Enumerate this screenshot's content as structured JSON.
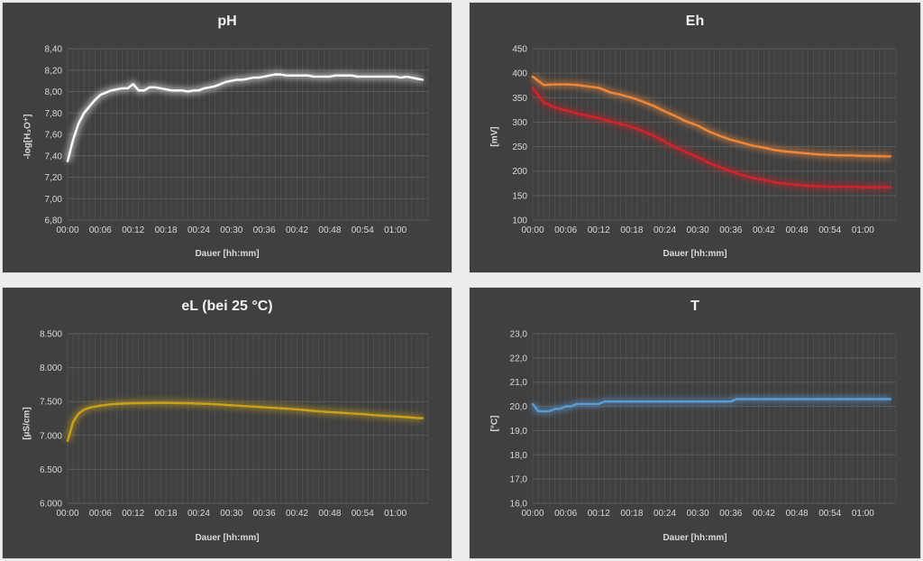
{
  "chart_data": [
    {
      "type": "line",
      "title": "pH",
      "xlabel": "Dauer [hh:mm]",
      "ylabel": "-log[H₃O⁺]",
      "ylim": [
        6.8,
        8.4
      ],
      "ystep": 0.2,
      "ydecimals": 2,
      "xlim": [
        0,
        66
      ],
      "xticks": [
        "00:00",
        "00:06",
        "00:12",
        "00:18",
        "00:24",
        "00:30",
        "00:36",
        "00:42",
        "00:48",
        "00:54",
        "01:00"
      ],
      "grid": true,
      "series": [
        {
          "color": "#ffffff",
          "x": [
            0,
            1,
            2,
            3,
            4,
            5,
            6,
            7,
            8,
            9,
            10,
            11,
            12,
            13,
            14,
            15,
            16,
            17,
            18,
            19,
            20,
            21,
            22,
            23,
            24,
            25,
            26,
            27,
            28,
            29,
            30,
            31,
            32,
            33,
            34,
            35,
            36,
            37,
            38,
            39,
            40,
            41,
            42,
            43,
            44,
            45,
            46,
            47,
            48,
            49,
            50,
            51,
            52,
            53,
            54,
            55,
            56,
            57,
            58,
            59,
            60,
            61,
            62,
            63,
            64,
            65
          ],
          "values": [
            7.35,
            7.55,
            7.7,
            7.8,
            7.86,
            7.92,
            7.97,
            7.99,
            8.01,
            8.02,
            8.03,
            8.03,
            8.07,
            8.01,
            8.01,
            8.04,
            8.04,
            8.03,
            8.02,
            8.01,
            8.01,
            8.01,
            8.0,
            8.01,
            8.01,
            8.03,
            8.04,
            8.05,
            8.07,
            8.09,
            8.1,
            8.11,
            8.11,
            8.12,
            8.13,
            8.13,
            8.14,
            8.15,
            8.16,
            8.16,
            8.15,
            8.15,
            8.15,
            8.15,
            8.15,
            8.14,
            8.14,
            8.14,
            8.14,
            8.15,
            8.15,
            8.15,
            8.15,
            8.14,
            8.14,
            8.14,
            8.14,
            8.14,
            8.14,
            8.14,
            8.14,
            8.13,
            8.14,
            8.13,
            8.12,
            8.11
          ]
        }
      ]
    },
    {
      "type": "line",
      "title": "Eh",
      "xlabel": "Dauer [hh:mm]",
      "ylabel": "[mV]",
      "ylim": [
        100,
        450
      ],
      "ystep": 50,
      "ydecimals": 0,
      "xlim": [
        0,
        66
      ],
      "xticks": [
        "00:00",
        "00:06",
        "00:12",
        "00:18",
        "00:24",
        "00:30",
        "00:36",
        "00:42",
        "00:48",
        "00:54",
        "01:00"
      ],
      "grid": true,
      "series": [
        {
          "color": "#f0883a",
          "x": [
            0,
            2,
            4,
            6,
            8,
            10,
            12,
            13,
            14,
            16,
            18,
            20,
            22,
            24,
            26,
            28,
            30,
            31,
            32,
            34,
            36,
            38,
            40,
            42,
            44,
            46,
            48,
            50,
            52,
            54,
            56,
            58,
            60,
            62,
            64,
            65
          ],
          "values": [
            393,
            376,
            377,
            377,
            376,
            373,
            370,
            366,
            361,
            356,
            350,
            342,
            333,
            322,
            312,
            301,
            293,
            287,
            281,
            272,
            264,
            258,
            252,
            248,
            243,
            240,
            238,
            236,
            234,
            233,
            232,
            232,
            231,
            231,
            230,
            230
          ]
        },
        {
          "color": "#d0242a",
          "x": [
            0,
            2,
            4,
            6,
            8,
            10,
            12,
            14,
            16,
            18,
            20,
            22,
            24,
            26,
            28,
            30,
            32,
            34,
            36,
            38,
            40,
            42,
            44,
            46,
            48,
            50,
            52,
            54,
            56,
            58,
            60,
            62,
            64,
            65
          ],
          "values": [
            370,
            340,
            330,
            324,
            318,
            313,
            308,
            302,
            296,
            290,
            282,
            272,
            260,
            248,
            238,
            228,
            217,
            208,
            200,
            192,
            186,
            182,
            177,
            174,
            172,
            170,
            169,
            168,
            168,
            168,
            167,
            167,
            167,
            167
          ]
        }
      ]
    },
    {
      "type": "line",
      "title": "eL (bei 25 °C)",
      "xlabel": "Dauer [hh:mm]",
      "ylabel": "[µS/cm]",
      "ylim": [
        6000,
        8500
      ],
      "ystep": 500,
      "ydecimals": 0,
      "thousands_sep": ".",
      "xlim": [
        0,
        66
      ],
      "xticks": [
        "00:00",
        "00:06",
        "00:12",
        "00:18",
        "00:24",
        "00:30",
        "00:36",
        "00:42",
        "00:48",
        "00:54",
        "01:00"
      ],
      "grid": true,
      "series": [
        {
          "color": "#c9a11a",
          "x": [
            0,
            1,
            2,
            3,
            4,
            6,
            8,
            10,
            12,
            14,
            16,
            18,
            20,
            22,
            24,
            26,
            28,
            30,
            32,
            34,
            36,
            38,
            40,
            42,
            44,
            46,
            48,
            50,
            52,
            54,
            56,
            58,
            60,
            62,
            64,
            65
          ],
          "values": [
            6920,
            7200,
            7320,
            7380,
            7410,
            7440,
            7460,
            7470,
            7475,
            7478,
            7480,
            7480,
            7478,
            7475,
            7470,
            7465,
            7455,
            7445,
            7435,
            7425,
            7415,
            7405,
            7395,
            7385,
            7370,
            7355,
            7345,
            7335,
            7325,
            7315,
            7300,
            7290,
            7280,
            7270,
            7255,
            7255
          ]
        }
      ]
    },
    {
      "type": "line",
      "title": "T",
      "xlabel": "Dauer [hh:mm]",
      "ylabel": "[°C]",
      "ylim": [
        16.0,
        23.0
      ],
      "ystep": 1,
      "ydecimals": 1,
      "xlim": [
        0,
        66
      ],
      "xticks": [
        "00:00",
        "00:06",
        "00:12",
        "00:18",
        "00:24",
        "00:30",
        "00:36",
        "00:42",
        "00:48",
        "00:54",
        "01:00"
      ],
      "grid": true,
      "series": [
        {
          "color": "#5b9bd5",
          "x": [
            0,
            1,
            2,
            3,
            4,
            5,
            6,
            7,
            8,
            9,
            10,
            11,
            12,
            13,
            14,
            20,
            30,
            36,
            37,
            40,
            50,
            60,
            65
          ],
          "values": [
            20.1,
            19.8,
            19.8,
            19.8,
            19.9,
            19.9,
            20.0,
            20.0,
            20.1,
            20.1,
            20.1,
            20.1,
            20.1,
            20.2,
            20.2,
            20.2,
            20.2,
            20.2,
            20.3,
            20.3,
            20.3,
            20.3,
            20.3
          ]
        }
      ]
    }
  ]
}
